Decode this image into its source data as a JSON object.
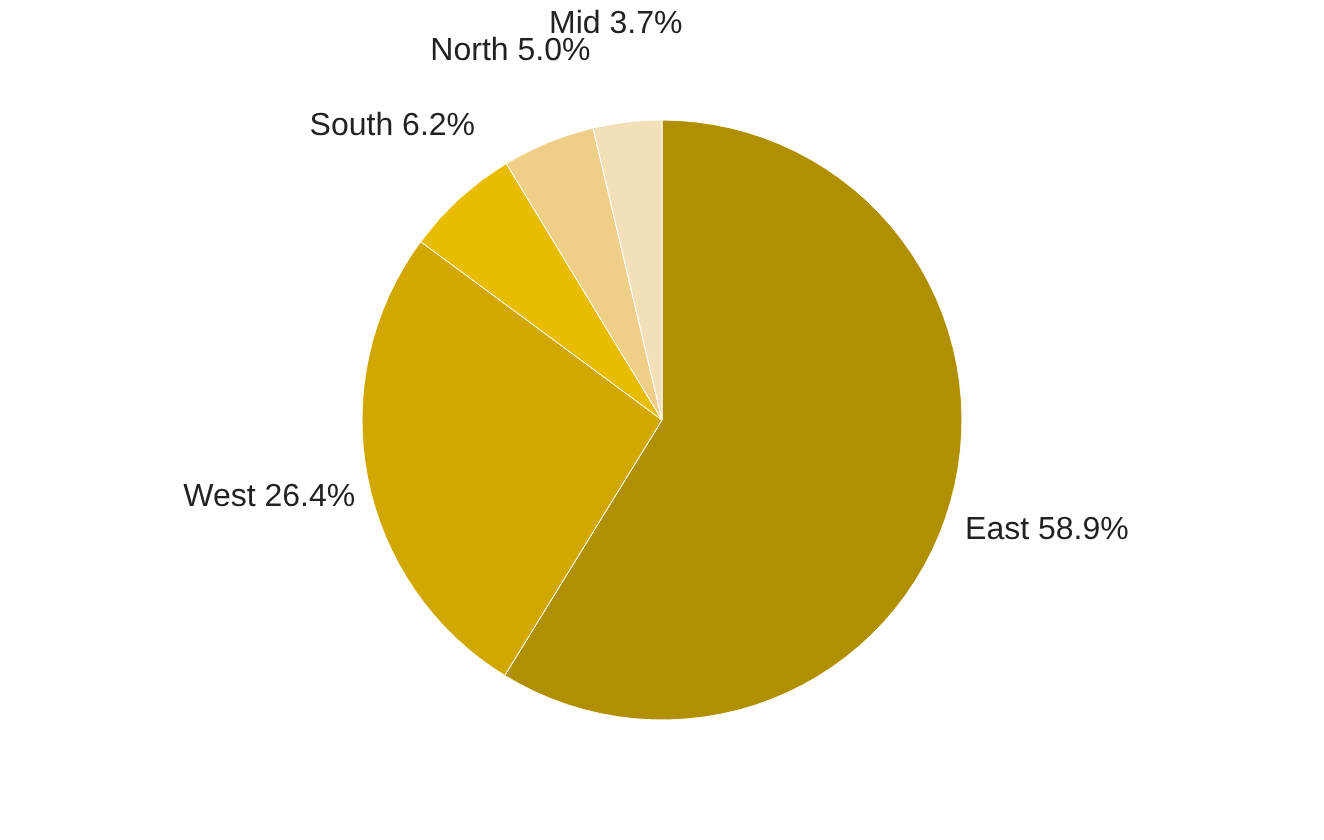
{
  "chart_data": {
    "type": "pie",
    "categories": [
      "East",
      "West",
      "South",
      "North",
      "Mid"
    ],
    "values": [
      58.9,
      26.4,
      6.2,
      5.0,
      3.7
    ],
    "value_labels": [
      "58.9%",
      "26.4%",
      "6.2%",
      "5.0%",
      "3.7%"
    ],
    "colors": [
      "#b08f00",
      "#d1a800",
      "#e8bd00",
      "#efcf87",
      "#f3dfb8"
    ],
    "legend": false
  }
}
